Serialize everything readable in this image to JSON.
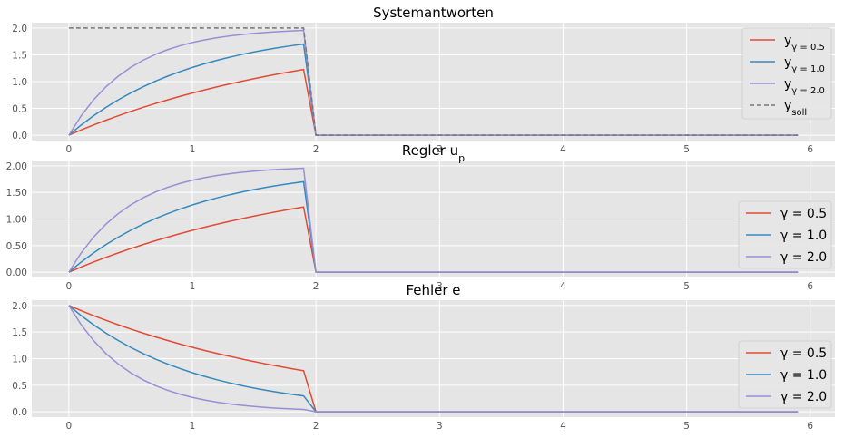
{
  "chart_data": [
    {
      "type": "line",
      "title": "Systemantworten",
      "xlim": [
        -0.3,
        6.2
      ],
      "ylim": [
        -0.1,
        2.1
      ],
      "xticks": [
        "0",
        "1",
        "2",
        "3",
        "4",
        "5",
        "6"
      ],
      "yticks": [
        "0.0",
        "0.5",
        "1.0",
        "1.5",
        "2.0"
      ],
      "grid": true,
      "legend_placement": "right",
      "series": [
        {
          "name": "y",
          "sub": "γ = 0.5",
          "color": "#E24A33",
          "kind": "rise",
          "gamma": 0.5
        },
        {
          "name": "y",
          "sub": "γ = 1.0",
          "color": "#348ABD",
          "kind": "rise",
          "gamma": 1.0
        },
        {
          "name": "y",
          "sub": "γ = 2.0",
          "color": "#988ED5",
          "kind": "rise",
          "gamma": 2.0
        },
        {
          "name": "y",
          "sub": "soll",
          "color": "#777777",
          "kind": "setpoint",
          "dashed": true
        }
      ]
    },
    {
      "type": "line",
      "title": "Regler u",
      "title_sub": "p",
      "xlim": [
        -0.3,
        6.2
      ],
      "ylim": [
        -0.1,
        2.1
      ],
      "xticks": [
        "0",
        "1",
        "2",
        "3",
        "4",
        "5",
        "6"
      ],
      "yticks": [
        "0.00",
        "0.50",
        "1.00",
        "1.50",
        "2.00"
      ],
      "grid": true,
      "legend_placement": "lower-right",
      "series": [
        {
          "name": "γ = 0.5",
          "color": "#E24A33",
          "kind": "rise",
          "gamma": 0.5
        },
        {
          "name": "γ = 1.0",
          "color": "#348ABD",
          "kind": "rise",
          "gamma": 1.0
        },
        {
          "name": "γ = 2.0",
          "color": "#988ED5",
          "kind": "rise",
          "gamma": 2.0
        }
      ]
    },
    {
      "type": "line",
      "title": "Fehler e",
      "xlim": [
        -0.3,
        6.2
      ],
      "ylim": [
        -0.1,
        2.1
      ],
      "xticks": [
        "0",
        "1",
        "2",
        "3",
        "4",
        "5",
        "6"
      ],
      "yticks": [
        "0.0",
        "0.5",
        "1.0",
        "1.5",
        "2.0"
      ],
      "grid": true,
      "legend_placement": "lower-right",
      "series": [
        {
          "name": "γ = 0.5",
          "color": "#E24A33",
          "kind": "decay",
          "gamma": 0.5
        },
        {
          "name": "γ = 1.0",
          "color": "#348ABD",
          "kind": "decay",
          "gamma": 1.0
        },
        {
          "name": "γ = 2.0",
          "color": "#988ED5",
          "kind": "decay",
          "gamma": 2.0
        }
      ]
    }
  ],
  "x_samples": {
    "step": 0.1,
    "end": 5.9,
    "switch": 1.9,
    "zero_from": 2.0,
    "amplitude": 2.0
  }
}
